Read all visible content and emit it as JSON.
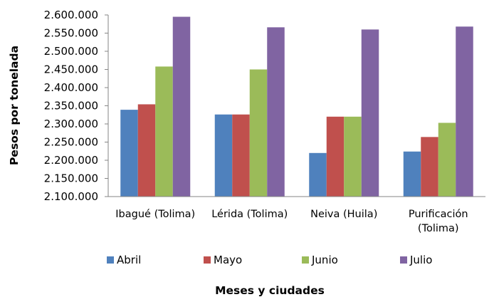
{
  "chart_data": {
    "type": "bar",
    "categories": [
      [
        "Ibagué (Tolima)"
      ],
      [
        "Lérida (Tolima)"
      ],
      [
        "Neiva (Huila)"
      ],
      [
        "Purificación",
        "(Tolima)"
      ]
    ],
    "series": [
      {
        "name": "Abril",
        "values": [
          2339000,
          2326000,
          2220000,
          2224000
        ],
        "color": "#4F81BD"
      },
      {
        "name": "Mayo",
        "values": [
          2354000,
          2326000,
          2320000,
          2264000
        ],
        "color": "#C0504D"
      },
      {
        "name": "Junio",
        "values": [
          2458000,
          2450000,
          2320000,
          2303000
        ],
        "color": "#9BBB59"
      },
      {
        "name": "Julio",
        "values": [
          2595000,
          2566000,
          2560000,
          2568000
        ],
        "color": "#8064A2"
      }
    ],
    "ylim": [
      2100000,
      2600000
    ],
    "yticks": [
      "2.100.000",
      "2.150.000",
      "2.200.000",
      "2.250.000",
      "2.300.000",
      "2.350.000",
      "2.400.000",
      "2.450.000",
      "2.500.000",
      "2.550.000",
      "2.600.000"
    ],
    "xlabel": "Meses y ciudades",
    "ylabel": "Pesos por tonelada",
    "legend_position": "bottom",
    "grid": false
  }
}
